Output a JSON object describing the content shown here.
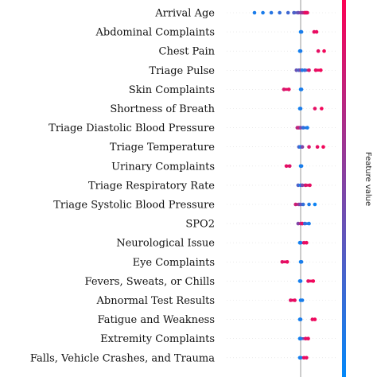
{
  "chart_data": {
    "type": "scatter",
    "features": [
      {
        "name": "Arrival Age",
        "points": [
          {
            "x": -0.55,
            "v": 0.1
          },
          {
            "x": -0.45,
            "v": 0.1
          },
          {
            "x": -0.35,
            "v": 0.15
          },
          {
            "x": -0.25,
            "v": 0.2
          },
          {
            "x": -0.15,
            "v": 0.25
          },
          {
            "x": -0.08,
            "v": 0.3
          },
          {
            "x": -0.03,
            "v": 0.4
          },
          {
            "x": 0.0,
            "v": 0.5
          },
          {
            "x": 0.02,
            "v": 0.6
          },
          {
            "x": 0.04,
            "v": 0.7
          },
          {
            "x": 0.05,
            "v": 0.8
          },
          {
            "x": 0.06,
            "v": 0.9
          },
          {
            "x": 0.07,
            "v": 0.95
          },
          {
            "x": 0.08,
            "v": 0.9
          }
        ]
      },
      {
        "name": "Abdominal Complaints",
        "points": [
          {
            "x": 0.0,
            "v": 0.05
          },
          {
            "x": 0.01,
            "v": 0.1
          },
          {
            "x": 0.16,
            "v": 0.9
          },
          {
            "x": 0.19,
            "v": 0.92
          }
        ]
      },
      {
        "name": "Chest Pain",
        "points": [
          {
            "x": -0.01,
            "v": 0.05
          },
          {
            "x": 0.0,
            "v": 0.1
          },
          {
            "x": 0.21,
            "v": 0.9
          },
          {
            "x": 0.28,
            "v": 0.95
          }
        ]
      },
      {
        "name": "Triage Pulse",
        "points": [
          {
            "x": -0.05,
            "v": 0.4
          },
          {
            "x": -0.02,
            "v": 0.3
          },
          {
            "x": 0.0,
            "v": 0.5
          },
          {
            "x": 0.02,
            "v": 0.1
          },
          {
            "x": 0.05,
            "v": 0.2
          },
          {
            "x": 0.1,
            "v": 0.85
          },
          {
            "x": 0.18,
            "v": 0.9
          },
          {
            "x": 0.24,
            "v": 0.95
          }
        ]
      },
      {
        "name": "Skin Complaints",
        "points": [
          {
            "x": -0.2,
            "v": 0.85
          },
          {
            "x": -0.14,
            "v": 0.9
          },
          {
            "x": 0.0,
            "v": 0.05
          },
          {
            "x": 0.01,
            "v": 0.1
          }
        ]
      },
      {
        "name": "Shortness of Breath",
        "points": [
          {
            "x": -0.01,
            "v": 0.05
          },
          {
            "x": 0.0,
            "v": 0.1
          },
          {
            "x": 0.17,
            "v": 0.9
          },
          {
            "x": 0.25,
            "v": 0.95
          }
        ]
      },
      {
        "name": "Triage Diastolic Blood Pressure",
        "points": [
          {
            "x": -0.04,
            "v": 0.7
          },
          {
            "x": -0.02,
            "v": 0.8
          },
          {
            "x": 0.0,
            "v": 0.5
          },
          {
            "x": 0.03,
            "v": 0.2
          },
          {
            "x": 0.08,
            "v": 0.1
          }
        ]
      },
      {
        "name": "Triage Temperature",
        "points": [
          {
            "x": -0.02,
            "v": 0.3
          },
          {
            "x": 0.0,
            "v": 0.1
          },
          {
            "x": 0.02,
            "v": 0.5
          },
          {
            "x": 0.1,
            "v": 0.85
          },
          {
            "x": 0.2,
            "v": 0.9
          },
          {
            "x": 0.27,
            "v": 0.95
          }
        ]
      },
      {
        "name": "Urinary Complaints",
        "points": [
          {
            "x": -0.17,
            "v": 0.9
          },
          {
            "x": -0.13,
            "v": 0.85
          },
          {
            "x": 0.0,
            "v": 0.05
          },
          {
            "x": 0.01,
            "v": 0.1
          }
        ]
      },
      {
        "name": "Triage Respiratory Rate",
        "points": [
          {
            "x": -0.03,
            "v": 0.3
          },
          {
            "x": 0.0,
            "v": 0.1
          },
          {
            "x": 0.02,
            "v": 0.5
          },
          {
            "x": 0.06,
            "v": 0.85
          },
          {
            "x": 0.11,
            "v": 0.9
          }
        ]
      },
      {
        "name": "Triage Systolic Blood Pressure",
        "points": [
          {
            "x": -0.06,
            "v": 0.8
          },
          {
            "x": -0.02,
            "v": 0.6
          },
          {
            "x": 0.0,
            "v": 0.4
          },
          {
            "x": 0.03,
            "v": 0.2
          },
          {
            "x": 0.1,
            "v": 0.1
          },
          {
            "x": 0.17,
            "v": 0.05
          }
        ]
      },
      {
        "name": "SPO2",
        "points": [
          {
            "x": -0.03,
            "v": 0.5
          },
          {
            "x": 0.0,
            "v": 0.7
          },
          {
            "x": 0.02,
            "v": 0.9
          },
          {
            "x": 0.05,
            "v": 0.2
          },
          {
            "x": 0.1,
            "v": 0.1
          }
        ]
      },
      {
        "name": "Neurological Issue",
        "points": [
          {
            "x": -0.01,
            "v": 0.05
          },
          {
            "x": 0.0,
            "v": 0.1
          },
          {
            "x": 0.04,
            "v": 0.9
          },
          {
            "x": 0.07,
            "v": 0.92
          }
        ]
      },
      {
        "name": "Eye Complaints",
        "points": [
          {
            "x": -0.22,
            "v": 0.88
          },
          {
            "x": -0.16,
            "v": 0.92
          },
          {
            "x": 0.0,
            "v": 0.05
          },
          {
            "x": 0.01,
            "v": 0.1
          }
        ]
      },
      {
        "name": "Fevers, Sweats, or Chills",
        "points": [
          {
            "x": -0.01,
            "v": 0.05
          },
          {
            "x": 0.0,
            "v": 0.1
          },
          {
            "x": 0.09,
            "v": 0.9
          },
          {
            "x": 0.15,
            "v": 0.95
          }
        ]
      },
      {
        "name": "Abnormal Test Results",
        "points": [
          {
            "x": -0.12,
            "v": 0.88
          },
          {
            "x": -0.07,
            "v": 0.92
          },
          {
            "x": 0.0,
            "v": 0.05
          },
          {
            "x": 0.02,
            "v": 0.1
          }
        ]
      },
      {
        "name": "Fatigue and Weakness",
        "points": [
          {
            "x": -0.01,
            "v": 0.05
          },
          {
            "x": 0.0,
            "v": 0.1
          },
          {
            "x": 0.14,
            "v": 0.9
          },
          {
            "x": 0.17,
            "v": 0.95
          }
        ]
      },
      {
        "name": "Extremity Complaints",
        "points": [
          {
            "x": -0.01,
            "v": 0.05
          },
          {
            "x": 0.0,
            "v": 0.1
          },
          {
            "x": 0.06,
            "v": 0.9
          },
          {
            "x": 0.09,
            "v": 0.92
          }
        ]
      },
      {
        "name": "Falls, Vehicle Crashes, and Trauma",
        "points": [
          {
            "x": -0.01,
            "v": 0.05
          },
          {
            "x": 0.0,
            "v": 0.1
          },
          {
            "x": 0.04,
            "v": 0.9
          },
          {
            "x": 0.07,
            "v": 0.92
          }
        ]
      }
    ],
    "xlim": [
      -0.6,
      0.35
    ],
    "colorbar": {
      "label": "Feature value",
      "low_color": "#008afb",
      "high_color": "#ff0052"
    },
    "zero_line_color": "#999999"
  }
}
